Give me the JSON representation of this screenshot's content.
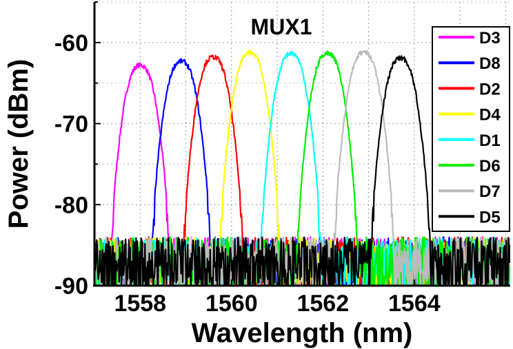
{
  "chart_data": {
    "type": "line",
    "title": "MUX1",
    "xlabel": "Wavelength (nm)",
    "ylabel": "Power (dBm)",
    "xlim": [
      1557,
      1566.1
    ],
    "ylim": [
      -90,
      -55
    ],
    "xticks": [
      1558,
      1560,
      1562,
      1564
    ],
    "yticks": [
      -60,
      -70,
      -80,
      -90
    ],
    "grid": true,
    "legend_position": "top-right",
    "series": [
      {
        "name": "D3",
        "color": "#ff00ff",
        "peak_x": 1558.0,
        "peak_y": -62.8
      },
      {
        "name": "D8",
        "color": "#0000ff",
        "peak_x": 1558.9,
        "peak_y": -62.3
      },
      {
        "name": "D2",
        "color": "#ff0000",
        "peak_x": 1559.6,
        "peak_y": -61.8
      },
      {
        "name": "D4",
        "color": "#ffff00",
        "peak_x": 1560.4,
        "peak_y": -61.2
      },
      {
        "name": "D1",
        "color": "#00ffff",
        "peak_x": 1561.3,
        "peak_y": -61.4
      },
      {
        "name": "D6",
        "color": "#00ee00",
        "peak_x": 1562.1,
        "peak_y": -61.3
      },
      {
        "name": "D7",
        "color": "#bbbbbb",
        "peak_x": 1562.9,
        "peak_y": -61.2
      },
      {
        "name": "D5",
        "color": "#000000",
        "peak_x": 1563.7,
        "peak_y": -61.9
      }
    ]
  }
}
